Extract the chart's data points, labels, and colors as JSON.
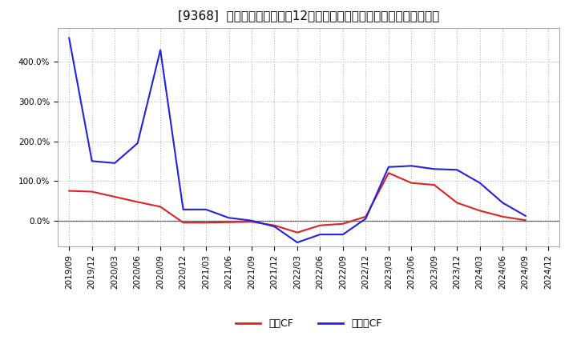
{
  "title": "[9368]  キャッシュフローの12か月移動合計の対前年同期増減率の推移",
  "x_labels": [
    "2019/09",
    "2019/12",
    "2020/03",
    "2020/06",
    "2020/09",
    "2020/12",
    "2021/03",
    "2021/06",
    "2021/09",
    "2021/12",
    "2022/03",
    "2022/06",
    "2022/09",
    "2022/12",
    "2023/03",
    "2023/06",
    "2023/09",
    "2023/12",
    "2024/03",
    "2024/06",
    "2024/09",
    "2024/12"
  ],
  "eigyo_cf": [
    0.75,
    0.73,
    0.6,
    0.47,
    0.35,
    -0.05,
    -0.05,
    -0.04,
    -0.03,
    -0.12,
    -0.3,
    -0.12,
    -0.08,
    0.1,
    1.2,
    0.95,
    0.9,
    0.45,
    0.25,
    0.1,
    0.01,
    null
  ],
  "free_cf": [
    4.6,
    1.5,
    1.45,
    1.95,
    4.3,
    0.28,
    0.28,
    0.07,
    0.0,
    -0.15,
    -0.55,
    -0.35,
    -0.35,
    0.05,
    1.35,
    1.38,
    1.3,
    1.28,
    0.95,
    0.45,
    0.12,
    null
  ],
  "eigyo_color": "#dd2222",
  "free_color": "#2222dd",
  "bg_color": "#ffffff",
  "plot_bg_color": "#ffffff",
  "grid_color": "#aaaaaa",
  "ylim_min": -0.65,
  "ylim_max": 4.85,
  "yticks": [
    0.0,
    1.0,
    2.0,
    3.0,
    4.0
  ],
  "ytick_labels": [
    "0.0%",
    "100.0%",
    "200.0%",
    "300.0%",
    "400.0%"
  ],
  "legend_eigyo": "営業CF",
  "legend_free": "フリーCF",
  "title_fontsize": 11,
  "tick_fontsize": 7.5,
  "legend_fontsize": 9
}
